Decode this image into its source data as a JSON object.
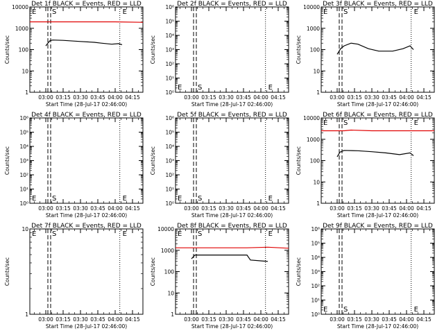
{
  "colors": {
    "events": "#000000",
    "lld": "#e00000",
    "axes": "#000000"
  },
  "chart_data": [
    {
      "type": "line",
      "title": "Det 1f BLACK = Events, RED = LLD",
      "xlabel": "Start Time (28-Jul-17 02:46:00)",
      "ylabel": "Counts/sec",
      "scale": "log",
      "ylim": [
        1,
        10000
      ],
      "yticks": [
        "1",
        "10",
        "100",
        "1000",
        "10000"
      ],
      "xticks": [
        "03:00",
        "03:15",
        "03:30",
        "03:45",
        "04:00",
        "04:15"
      ],
      "markers": {
        "S": "03:03",
        "E": "04:04"
      },
      "annotations": [
        "E",
        "S",
        "E"
      ],
      "series": [
        {
          "name": "Events",
          "x": [
            3.0,
            3.03,
            3.06,
            3.1,
            3.25,
            3.5,
            3.7,
            3.8,
            3.95,
            4.05,
            4.1
          ],
          "y": [
            150,
            200,
            260,
            280,
            270,
            240,
            220,
            200,
            180,
            190,
            170
          ]
        },
        {
          "name": "LLD",
          "x": [
            2.77,
            3.5,
            4.0,
            4.4
          ],
          "y": [
            2000,
            2000,
            2000,
            1900
          ]
        }
      ]
    },
    {
      "type": "line",
      "title": "Det 2f BLACK = Events, RED = LLD",
      "xlabel": "Start Time (28-Jul-17 02:46:00)",
      "ylabel": "Counts/sec",
      "scale": "log",
      "ylim": [
        1,
        1000000
      ],
      "yticks": [
        "10⁰",
        "10¹",
        "10²",
        "10³",
        "10⁴",
        "10⁵",
        "10⁶"
      ],
      "xticks": [
        "03:00",
        "03:15",
        "03:30",
        "03:45",
        "04:00",
        "04:15"
      ],
      "markers": {
        "S": "03:03",
        "E": "04:04"
      },
      "annotations": [
        "E",
        "S",
        "E"
      ],
      "series": []
    },
    {
      "type": "line",
      "title": "Det 3f BLACK = Events, RED = LLD",
      "xlabel": "Start Time (28-Jul-17 02:46:00)",
      "ylabel": "Counts/sec",
      "scale": "log",
      "ylim": [
        1,
        10000
      ],
      "yticks": [
        "1",
        "10",
        "100",
        "1000",
        "10000"
      ],
      "xticks": [
        "03:00",
        "03:15",
        "03:30",
        "03:45",
        "04:00",
        "04:15"
      ],
      "markers": {
        "S": "03:03",
        "E": "04:04"
      },
      "annotations": [
        "E",
        "S",
        "E"
      ],
      "series": [
        {
          "name": "Events",
          "x": [
            3.0,
            3.05,
            3.1,
            3.2,
            3.3,
            3.45,
            3.6,
            3.8,
            3.95,
            4.05,
            4.1
          ],
          "y": [
            60,
            110,
            150,
            200,
            180,
            110,
            85,
            85,
            110,
            150,
            100
          ]
        }
      ]
    },
    {
      "type": "line",
      "title": "Det 4f BLACK = Events, RED = LLD",
      "xlabel": "Start Time (28-Jul-17 02:46:00)",
      "ylabel": "Counts/sec",
      "scale": "log",
      "ylim": [
        1,
        1000000
      ],
      "yticks": [
        "10⁰",
        "10¹",
        "10²",
        "10³",
        "10⁴",
        "10⁵",
        "10⁶"
      ],
      "xticks": [
        "03:00",
        "03:15",
        "03:30",
        "03:45",
        "04:00",
        "04:15"
      ],
      "markers": {
        "S": "03:03",
        "E": "04:04"
      },
      "annotations": [
        "E",
        "S",
        "E"
      ],
      "series": []
    },
    {
      "type": "line",
      "title": "Det 5f BLACK = Events, RED = LLD",
      "xlabel": "Start Time (28-Jul-17 02:46:00)",
      "ylabel": "Counts/sec",
      "scale": "log",
      "ylim": [
        1,
        1000000
      ],
      "yticks": [
        "10⁰",
        "10¹",
        "10²",
        "10³",
        "10⁴",
        "10⁵",
        "10⁶"
      ],
      "xticks": [
        "03:00",
        "03:15",
        "03:30",
        "03:45",
        "04:00",
        "04:15"
      ],
      "markers": {
        "S": "03:03",
        "E": "04:04"
      },
      "annotations": [
        "E",
        "S",
        "E"
      ],
      "series": []
    },
    {
      "type": "line",
      "title": "Det 6f BLACK = Events, RED = LLD",
      "xlabel": "Start Time (28-Jul-17 02:46:00)",
      "ylabel": "Counts/sec",
      "scale": "log",
      "ylim": [
        1,
        10000
      ],
      "yticks": [
        "1",
        "10",
        "100",
        "1000",
        "10000"
      ],
      "xticks": [
        "03:00",
        "03:15",
        "03:30",
        "03:45",
        "04:00",
        "04:15"
      ],
      "markers": {
        "S": "03:03",
        "E": "04:04"
      },
      "annotations": [
        "E",
        "S",
        "E"
      ],
      "series": [
        {
          "name": "Events",
          "x": [
            3.0,
            3.04,
            3.1,
            3.3,
            3.5,
            3.7,
            3.9,
            4.05,
            4.1
          ],
          "y": [
            150,
            250,
            300,
            290,
            260,
            230,
            190,
            230,
            170
          ]
        },
        {
          "name": "LLD",
          "x": [
            2.77,
            3.1,
            3.2,
            3.5,
            4.4
          ],
          "y": [
            2500,
            2500,
            2700,
            2500,
            2500
          ]
        }
      ]
    },
    {
      "type": "line",
      "title": "Det 7f BLACK = Events, RED = LLD",
      "xlabel": "Start Time (28-Jul-17 02:46:00)",
      "ylabel": "Counts/sec",
      "scale": "log",
      "ylim": [
        1,
        10
      ],
      "yticks": [
        "1",
        "10"
      ],
      "xticks": [
        "03:00",
        "03:15",
        "03:30",
        "03:45",
        "04:00",
        "04:15"
      ],
      "markers": {
        "S": "03:03",
        "E": "04:04"
      },
      "annotations": [
        "E",
        "S",
        "E"
      ],
      "series": []
    },
    {
      "type": "line",
      "title": "Det 8f BLACK = Events, RED = LLD",
      "xlabel": "Start Time (28-Jul-17 02:46:00)",
      "ylabel": "Counts/sec",
      "scale": "log",
      "ylim": [
        1,
        10000
      ],
      "yticks": [
        "1",
        "10",
        "100",
        "1000",
        "10000"
      ],
      "xticks": [
        "03:00",
        "03:15",
        "03:30",
        "03:45",
        "04:00",
        "04:15"
      ],
      "markers": {
        "S": "03:03",
        "E": "04:04"
      },
      "annotations": [
        "E",
        "S",
        "E"
      ],
      "series": [
        {
          "name": "Events",
          "x": [
            3.0,
            3.05,
            3.1,
            3.5,
            3.8,
            3.85,
            4.1
          ],
          "y": [
            400,
            600,
            600,
            600,
            600,
            350,
            300
          ]
        },
        {
          "name": "LLD",
          "x": [
            2.77,
            3.5,
            3.8,
            4.1,
            4.4
          ],
          "y": [
            1300,
            1300,
            1300,
            1400,
            1250
          ]
        }
      ]
    },
    {
      "type": "line",
      "title": "Det 9f BLACK = Events, RED = LLD",
      "xlabel": "Start Time (28-Jul-17 02:46:00)",
      "ylabel": "Counts/sec",
      "scale": "log",
      "ylim": [
        1,
        1000000
      ],
      "yticks": [
        "10⁰",
        "10¹",
        "10²",
        "10³",
        "10⁴",
        "10⁵",
        "10⁶"
      ],
      "xticks": [
        "03:00",
        "03:15",
        "03:30",
        "03:45",
        "04:00",
        "04:15"
      ],
      "markers": {
        "S": "03:03",
        "E": "04:04"
      },
      "annotations": [
        "E",
        "S",
        "E"
      ],
      "series": []
    }
  ]
}
